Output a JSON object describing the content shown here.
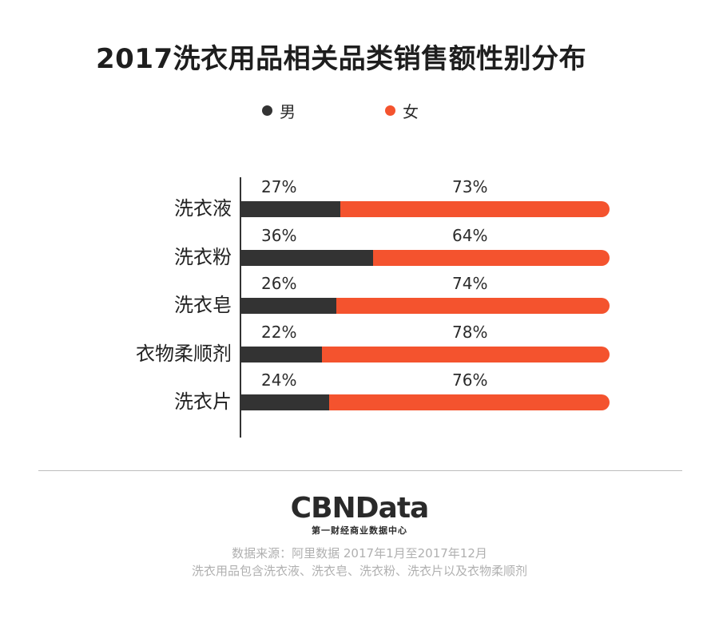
{
  "title": "2017洗衣用品相关品类销售额性别分布",
  "legend": [
    {
      "label": "男",
      "color": "#333333"
    },
    {
      "label": "女",
      "color": "#f4532e"
    }
  ],
  "chart_data": {
    "type": "bar",
    "orientation": "horizontal",
    "stacked": true,
    "title": "2017洗衣用品相关品类销售额性别分布",
    "categories": [
      "洗衣液",
      "洗衣粉",
      "洗衣皂",
      "衣物柔顺剂",
      "洗衣片"
    ],
    "series": [
      {
        "name": "男",
        "color": "#333333",
        "values": [
          27,
          36,
          26,
          22,
          24
        ],
        "labels": [
          "27%",
          "36%",
          "26%",
          "22%",
          "24%"
        ]
      },
      {
        "name": "女",
        "color": "#f4532e",
        "values": [
          73,
          64,
          74,
          78,
          76
        ],
        "labels": [
          "73%",
          "64%",
          "74%",
          "78%",
          "76%"
        ]
      }
    ],
    "xlim": [
      0,
      100
    ],
    "unit": "%",
    "legend_position": "top",
    "grid": false
  },
  "footer": {
    "logo_main": "CBNData",
    "logo_sub": "第一财经商业数据中心",
    "source_line1": "数据来源：阿里数据   2017年1月至2017年12月",
    "source_line2": "洗衣用品包含洗衣液、洗衣皂、洗衣粉、洗衣片以及衣物柔顺剂"
  }
}
